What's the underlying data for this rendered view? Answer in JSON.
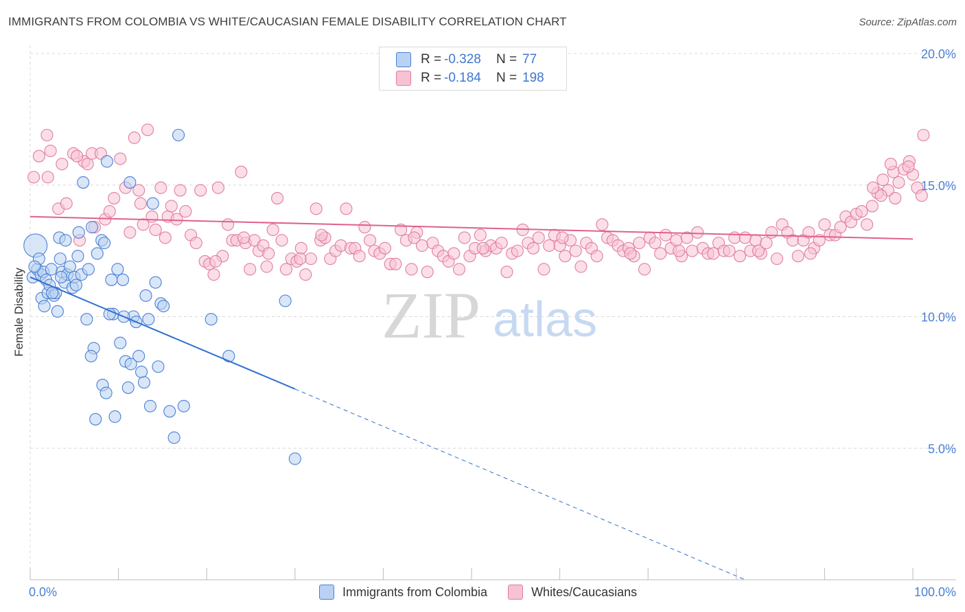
{
  "title": "IMMIGRANTS FROM COLOMBIA VS WHITE/CAUCASIAN FEMALE DISABILITY CORRELATION CHART",
  "source": "Source: ZipAtlas.com",
  "watermark": {
    "zip": "ZIP",
    "atlas": "atlas"
  },
  "colors": {
    "blue": "#4a7fd4",
    "blue_fill": "#b9d1f3",
    "blue_line": "#2f6fd0",
    "pink": "#e07ea0",
    "pink_fill": "#f7c2d3",
    "pink_line": "#e0608b",
    "grid": "#d8d8d8"
  },
  "legend": {
    "rows": [
      {
        "series": "Immigrants from Colombia",
        "r_label": "R =",
        "r_value": "-0.328",
        "n_label": "N =",
        "n_value": "77",
        "color": "#b9d1f3"
      },
      {
        "series": "Whites/Caucasians",
        "r_label": "R =",
        "r_value": "-0.184",
        "n_label": "N =",
        "n_value": "198",
        "color": "#f7c2d3"
      }
    ]
  },
  "chart_data": {
    "type": "scatter",
    "title": "IMMIGRANTS FROM COLOMBIA VS WHITE/CAUCASIAN FEMALE DISABILITY CORRELATION CHART",
    "xlabel": "",
    "ylabel": "Female Disability",
    "xlim": [
      0,
      100
    ],
    "ylim": [
      0,
      20
    ],
    "x_tick_labels": [
      "0.0%",
      "100.0%"
    ],
    "y_ticks": [
      5,
      10,
      15,
      20
    ],
    "y_tick_labels": [
      "5.0%",
      "10.0%",
      "15.0%",
      "20.0%"
    ],
    "legend_position": "bottom",
    "series": [
      {
        "name": "Immigrants from Colombia",
        "color": "#4a7fd4",
        "trend": {
          "x0": 0,
          "y0": 11.5,
          "x1": 30,
          "y1": 7.25,
          "dash_to_x": 81,
          "dash_to_y": 0
        },
        "points": [
          [
            0.6,
            12.7
          ],
          [
            0.3,
            11.5
          ],
          [
            0.8,
            11.8
          ],
          [
            1.2,
            11.6
          ],
          [
            1.0,
            12.2
          ],
          [
            1.5,
            11.7
          ],
          [
            0.5,
            11.9
          ],
          [
            1.8,
            11.4
          ],
          [
            1.3,
            10.7
          ],
          [
            1.6,
            10.4
          ],
          [
            2.0,
            10.9
          ],
          [
            2.4,
            11.8
          ],
          [
            2.7,
            10.8
          ],
          [
            2.9,
            10.9
          ],
          [
            3.1,
            10.2
          ],
          [
            3.4,
            12.2
          ],
          [
            3.6,
            11.7
          ],
          [
            3.9,
            11.3
          ],
          [
            4.2,
            11.6
          ],
          [
            4.5,
            11.9
          ],
          [
            4.8,
            11.1
          ],
          [
            5.0,
            11.5
          ],
          [
            5.2,
            11.2
          ],
          [
            5.4,
            12.3
          ],
          [
            3.3,
            13.0
          ],
          [
            5.8,
            11.6
          ],
          [
            6.0,
            15.1
          ],
          [
            5.5,
            13.2
          ],
          [
            6.4,
            9.9
          ],
          [
            7.0,
            13.4
          ],
          [
            7.6,
            12.4
          ],
          [
            7.2,
            8.8
          ],
          [
            7.4,
            6.1
          ],
          [
            8.1,
            12.9
          ],
          [
            8.2,
            7.4
          ],
          [
            8.4,
            12.8
          ],
          [
            8.6,
            7.1
          ],
          [
            9.2,
            11.4
          ],
          [
            9.4,
            10.1
          ],
          [
            9.6,
            6.2
          ],
          [
            9.9,
            11.8
          ],
          [
            10.2,
            9.0
          ],
          [
            10.5,
            11.4
          ],
          [
            10.8,
            8.3
          ],
          [
            11.1,
            7.3
          ],
          [
            11.4,
            8.2
          ],
          [
            11.7,
            10.0
          ],
          [
            12.0,
            9.8
          ],
          [
            12.3,
            8.5
          ],
          [
            12.6,
            7.9
          ],
          [
            12.9,
            7.5
          ],
          [
            13.1,
            10.8
          ],
          [
            13.4,
            9.9
          ],
          [
            13.6,
            6.6
          ],
          [
            13.9,
            14.3
          ],
          [
            14.2,
            11.3
          ],
          [
            14.5,
            8.1
          ],
          [
            14.8,
            10.5
          ],
          [
            15.1,
            10.4
          ],
          [
            11.3,
            15.1
          ],
          [
            8.7,
            15.9
          ],
          [
            6.6,
            11.8
          ],
          [
            4.0,
            12.9
          ],
          [
            3.5,
            11.5
          ],
          [
            2.2,
            11.2
          ],
          [
            2.5,
            10.9
          ],
          [
            15.8,
            6.4
          ],
          [
            16.3,
            5.4
          ],
          [
            17.4,
            6.6
          ],
          [
            20.5,
            9.9
          ],
          [
            22.5,
            8.5
          ],
          [
            16.8,
            16.9
          ],
          [
            28.9,
            10.6
          ],
          [
            30.0,
            4.6
          ],
          [
            10.6,
            10.0
          ],
          [
            9.0,
            10.1
          ],
          [
            6.9,
            8.5
          ]
        ]
      },
      {
        "name": "Whites/Caucasians",
        "color": "#e07ea0",
        "trend": {
          "x0": 0,
          "y0": 13.8,
          "x1": 100,
          "y1": 12.95
        },
        "points": [
          [
            0.4,
            15.3
          ],
          [
            1.0,
            16.1
          ],
          [
            1.9,
            16.9
          ],
          [
            2.3,
            16.3
          ],
          [
            3.2,
            14.1
          ],
          [
            3.6,
            15.8
          ],
          [
            4.1,
            14.3
          ],
          [
            4.9,
            16.2
          ],
          [
            5.6,
            12.9
          ],
          [
            6.1,
            15.9
          ],
          [
            6.5,
            15.8
          ],
          [
            7.0,
            16.2
          ],
          [
            7.3,
            13.4
          ],
          [
            8.0,
            16.2
          ],
          [
            8.5,
            13.7
          ],
          [
            9.0,
            14.0
          ],
          [
            9.5,
            14.5
          ],
          [
            10.2,
            16.0
          ],
          [
            10.8,
            14.9
          ],
          [
            11.3,
            13.2
          ],
          [
            11.8,
            16.8
          ],
          [
            12.3,
            14.8
          ],
          [
            12.8,
            13.5
          ],
          [
            13.3,
            17.1
          ],
          [
            13.8,
            13.8
          ],
          [
            14.2,
            13.3
          ],
          [
            14.8,
            14.9
          ],
          [
            15.3,
            13.0
          ],
          [
            15.6,
            13.8
          ],
          [
            16.0,
            14.2
          ],
          [
            16.6,
            13.7
          ],
          [
            17.0,
            14.8
          ],
          [
            17.6,
            14.0
          ],
          [
            18.2,
            13.1
          ],
          [
            18.8,
            12.8
          ],
          [
            19.3,
            14.8
          ],
          [
            19.8,
            12.1
          ],
          [
            20.3,
            12.0
          ],
          [
            20.8,
            11.6
          ],
          [
            21.3,
            14.9
          ],
          [
            21.8,
            12.3
          ],
          [
            22.4,
            13.5
          ],
          [
            22.9,
            12.9
          ],
          [
            23.4,
            12.9
          ],
          [
            23.9,
            15.5
          ],
          [
            24.4,
            12.8
          ],
          [
            24.9,
            11.8
          ],
          [
            25.4,
            12.9
          ],
          [
            25.9,
            12.5
          ],
          [
            26.4,
            12.7
          ],
          [
            27.0,
            12.4
          ],
          [
            27.5,
            13.3
          ],
          [
            28.0,
            14.5
          ],
          [
            28.5,
            12.9
          ],
          [
            29.0,
            11.8
          ],
          [
            29.6,
            12.2
          ],
          [
            30.2,
            12.1
          ],
          [
            30.7,
            12.6
          ],
          [
            31.2,
            11.6
          ],
          [
            31.8,
            12.2
          ],
          [
            32.4,
            14.1
          ],
          [
            32.9,
            12.9
          ],
          [
            33.4,
            13.0
          ],
          [
            34.0,
            12.2
          ],
          [
            34.6,
            12.5
          ],
          [
            35.2,
            12.7
          ],
          [
            35.8,
            14.1
          ],
          [
            36.3,
            12.6
          ],
          [
            36.8,
            12.6
          ],
          [
            37.3,
            12.3
          ],
          [
            37.9,
            13.4
          ],
          [
            38.5,
            12.9
          ],
          [
            39.0,
            12.5
          ],
          [
            39.6,
            12.4
          ],
          [
            40.2,
            12.6
          ],
          [
            40.8,
            12.0
          ],
          [
            41.4,
            12.0
          ],
          [
            42.0,
            13.3
          ],
          [
            42.6,
            12.9
          ],
          [
            43.2,
            11.8
          ],
          [
            43.8,
            13.2
          ],
          [
            44.4,
            12.7
          ],
          [
            45.0,
            11.7
          ],
          [
            45.6,
            12.8
          ],
          [
            46.2,
            12.5
          ],
          [
            46.8,
            12.3
          ],
          [
            47.4,
            12.1
          ],
          [
            48.0,
            12.4
          ],
          [
            48.6,
            11.8
          ],
          [
            49.2,
            13.0
          ],
          [
            49.8,
            12.3
          ],
          [
            50.4,
            12.6
          ],
          [
            51.0,
            13.1
          ],
          [
            51.6,
            12.5
          ],
          [
            52.2,
            12.7
          ],
          [
            52.8,
            12.6
          ],
          [
            53.4,
            12.8
          ],
          [
            54.0,
            11.7
          ],
          [
            54.6,
            12.4
          ],
          [
            55.2,
            12.5
          ],
          [
            55.8,
            13.3
          ],
          [
            56.4,
            12.8
          ],
          [
            57.0,
            12.6
          ],
          [
            57.6,
            13.0
          ],
          [
            58.2,
            11.8
          ],
          [
            58.8,
            12.7
          ],
          [
            59.4,
            13.1
          ],
          [
            60.0,
            12.7
          ],
          [
            60.6,
            12.3
          ],
          [
            61.2,
            12.9
          ],
          [
            61.8,
            12.5
          ],
          [
            62.4,
            11.9
          ],
          [
            63.0,
            12.8
          ],
          [
            63.6,
            12.6
          ],
          [
            64.2,
            12.3
          ],
          [
            64.8,
            13.5
          ],
          [
            65.4,
            13.0
          ],
          [
            66.0,
            12.9
          ],
          [
            66.6,
            12.7
          ],
          [
            67.2,
            12.5
          ],
          [
            67.8,
            12.6
          ],
          [
            68.4,
            12.3
          ],
          [
            69.0,
            12.8
          ],
          [
            69.6,
            11.8
          ],
          [
            70.2,
            13.0
          ],
          [
            70.8,
            12.8
          ],
          [
            71.4,
            12.4
          ],
          [
            72.0,
            13.1
          ],
          [
            72.6,
            12.6
          ],
          [
            73.2,
            12.9
          ],
          [
            73.8,
            12.3
          ],
          [
            74.4,
            13.0
          ],
          [
            75.0,
            12.5
          ],
          [
            75.6,
            13.2
          ],
          [
            76.2,
            12.6
          ],
          [
            76.8,
            12.4
          ],
          [
            77.4,
            12.4
          ],
          [
            78.0,
            12.8
          ],
          [
            78.6,
            12.5
          ],
          [
            79.2,
            12.5
          ],
          [
            79.8,
            13.0
          ],
          [
            80.4,
            12.3
          ],
          [
            81.0,
            13.0
          ],
          [
            81.6,
            12.5
          ],
          [
            82.2,
            12.9
          ],
          [
            82.8,
            12.4
          ],
          [
            83.4,
            12.8
          ],
          [
            84.0,
            13.2
          ],
          [
            84.6,
            12.2
          ],
          [
            85.2,
            13.5
          ],
          [
            85.8,
            13.2
          ],
          [
            86.4,
            12.9
          ],
          [
            87.0,
            12.3
          ],
          [
            87.6,
            12.9
          ],
          [
            88.2,
            13.2
          ],
          [
            88.8,
            12.6
          ],
          [
            89.4,
            12.9
          ],
          [
            90.0,
            13.5
          ],
          [
            90.6,
            13.1
          ],
          [
            91.2,
            13.1
          ],
          [
            91.8,
            13.4
          ],
          [
            92.4,
            13.8
          ],
          [
            93.0,
            13.6
          ],
          [
            93.6,
            13.9
          ],
          [
            94.2,
            14.0
          ],
          [
            94.8,
            13.5
          ],
          [
            95.4,
            14.2
          ],
          [
            96.0,
            14.7
          ],
          [
            96.6,
            15.2
          ],
          [
            97.2,
            14.8
          ],
          [
            97.8,
            15.5
          ],
          [
            98.4,
            15.1
          ],
          [
            99.0,
            15.6
          ],
          [
            99.6,
            15.9
          ],
          [
            100.0,
            15.4
          ],
          [
            100.5,
            14.9
          ],
          [
            101.2,
            16.9
          ],
          [
            99.5,
            15.7
          ],
          [
            98.0,
            14.5
          ],
          [
            97.5,
            15.8
          ],
          [
            96.4,
            14.6
          ],
          [
            95.5,
            14.9
          ],
          [
            101.0,
            14.6
          ],
          [
            30.6,
            12.2
          ],
          [
            12.5,
            14.3
          ],
          [
            5.3,
            16.1
          ],
          [
            2.0,
            15.3
          ],
          [
            21.0,
            12.1
          ],
          [
            24.2,
            13.0
          ],
          [
            26.8,
            11.9
          ],
          [
            33.0,
            13.1
          ],
          [
            43.5,
            13.0
          ],
          [
            51.3,
            12.6
          ],
          [
            60.3,
            13.0
          ],
          [
            68.0,
            12.4
          ],
          [
            73.5,
            12.5
          ],
          [
            82.5,
            12.5
          ],
          [
            88.4,
            12.4
          ]
        ]
      }
    ]
  }
}
